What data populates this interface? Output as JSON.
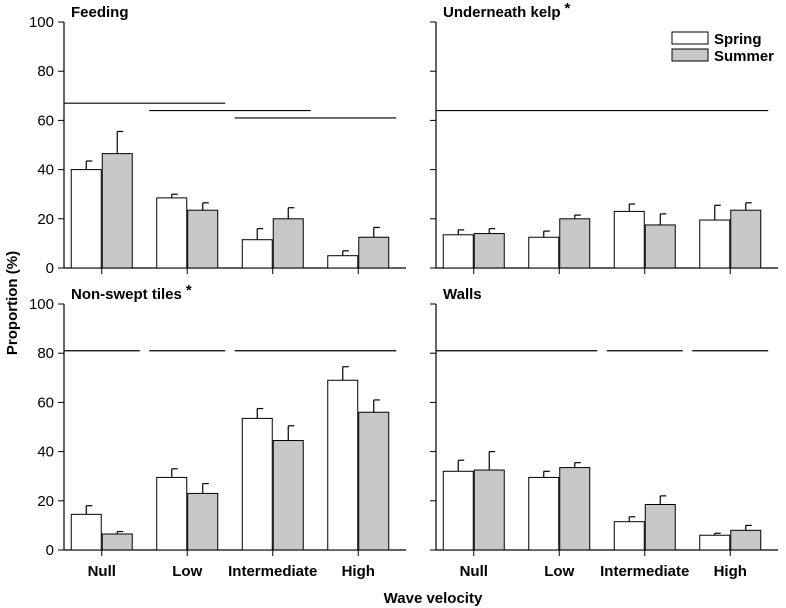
{
  "chart_data": {
    "type": "bar",
    "xlabel": "Wave velocity",
    "ylabel": "Proportion (%)",
    "ylim": [
      0,
      100
    ],
    "yticks": [
      0,
      20,
      40,
      60,
      80,
      100
    ],
    "categories": [
      "Null",
      "Low",
      "Intermediate",
      "High"
    ],
    "legend": {
      "placement": "top-right",
      "entries": [
        {
          "name": "Spring",
          "color": "#ffffff"
        },
        {
          "name": "Summer",
          "color": "#c8c8c8"
        }
      ]
    },
    "panels": [
      {
        "title": "Feeding",
        "title_marker": "",
        "show_categories": false,
        "series": [
          {
            "name": "Spring",
            "values": [
              40,
              28.5,
              11.5,
              5
            ],
            "errors": [
              3.5,
              1.5,
              4.5,
              2
            ]
          },
          {
            "name": "Summer",
            "values": [
              46.5,
              23.5,
              20,
              12.5
            ],
            "errors": [
              9,
              3,
              4.5,
              4
            ]
          }
        ],
        "homogeneous_groups": [
          {
            "from": 0,
            "to": 1,
            "y": 67
          },
          {
            "from": 1,
            "to": 2,
            "y": 64
          },
          {
            "from": 2,
            "to": 3,
            "y": 61
          }
        ]
      },
      {
        "title": "Underneath kelp",
        "title_marker": "*",
        "show_categories": false,
        "series": [
          {
            "name": "Spring",
            "values": [
              13.5,
              12.5,
              23,
              19.5
            ],
            "errors": [
              2,
              2.5,
              3,
              6
            ]
          },
          {
            "name": "Summer",
            "values": [
              14,
              20,
              17.5,
              23.5
            ],
            "errors": [
              2,
              1.5,
              4.5,
              3
            ]
          }
        ],
        "homogeneous_groups": [
          {
            "from": 0,
            "to": 3,
            "y": 64
          }
        ]
      },
      {
        "title": "Non-swept tiles",
        "title_marker": "*",
        "show_categories": true,
        "series": [
          {
            "name": "Spring",
            "values": [
              14.5,
              29.5,
              53.5,
              69
            ],
            "errors": [
              3.5,
              3.5,
              4,
              5.5
            ]
          },
          {
            "name": "Summer",
            "values": [
              6.5,
              23,
              44.5,
              56
            ],
            "errors": [
              1,
              4,
              6,
              5
            ]
          }
        ],
        "homogeneous_groups": [
          {
            "from": 0,
            "to": 0,
            "y": 81
          },
          {
            "from": 1,
            "to": 1,
            "y": 81
          },
          {
            "from": 2,
            "to": 3,
            "y": 81
          }
        ]
      },
      {
        "title": "Walls",
        "title_marker": "",
        "show_categories": true,
        "series": [
          {
            "name": "Spring",
            "values": [
              32,
              29.5,
              11.5,
              6
            ],
            "errors": [
              4.5,
              2.5,
              2,
              0.8
            ]
          },
          {
            "name": "Summer",
            "values": [
              32.5,
              33.5,
              18.5,
              8
            ],
            "errors": [
              7.5,
              2,
              3.5,
              2
            ]
          }
        ],
        "homogeneous_groups": [
          {
            "from": 0,
            "to": 1,
            "y": 81
          },
          {
            "from": 2,
            "to": 2,
            "y": 81
          },
          {
            "from": 3,
            "to": 3,
            "y": 81
          }
        ]
      }
    ]
  }
}
